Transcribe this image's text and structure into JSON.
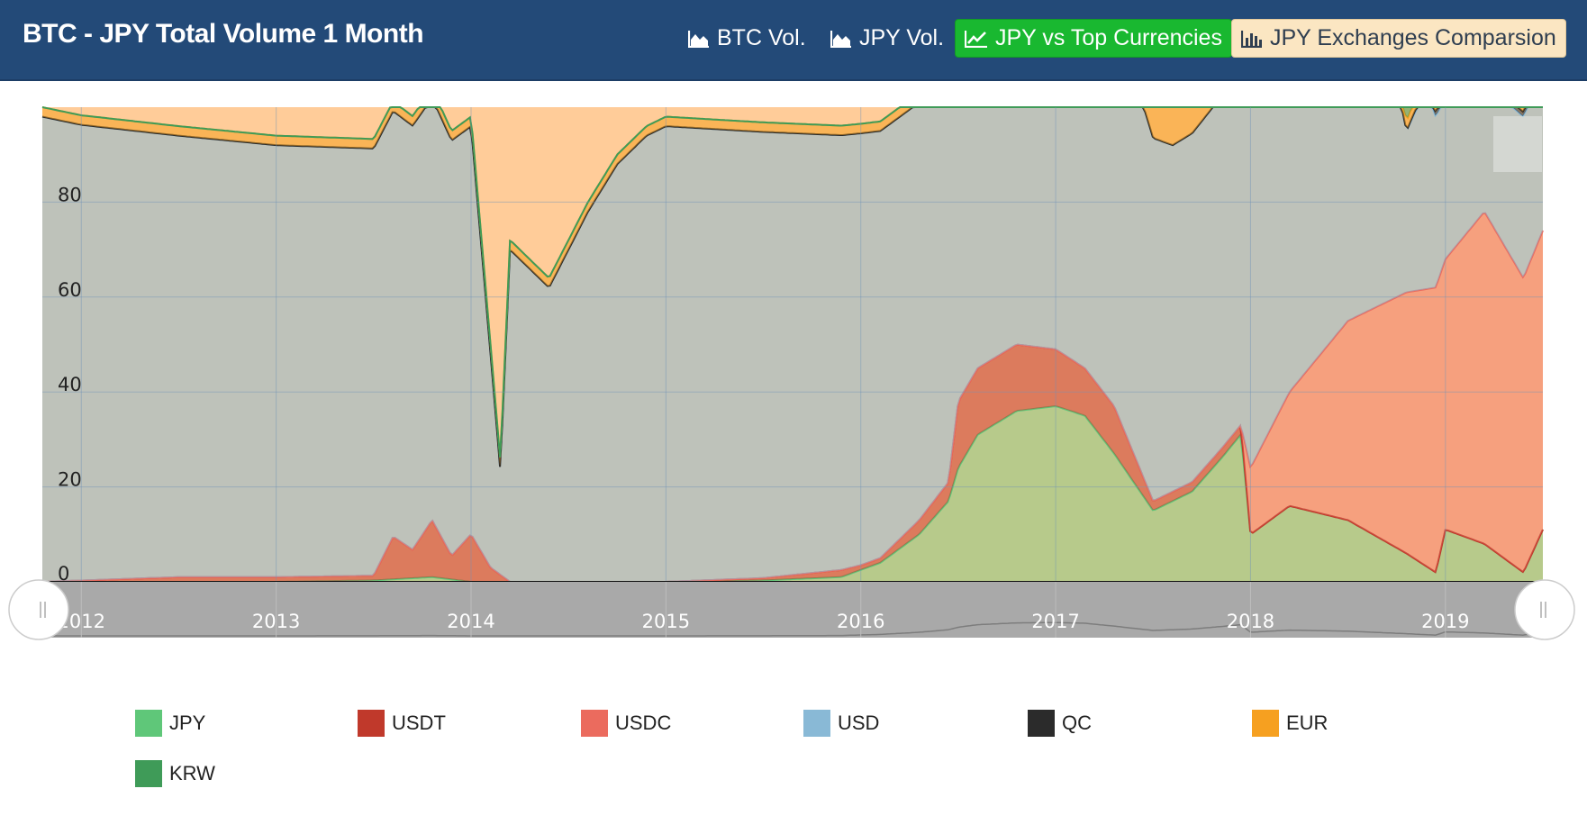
{
  "header": {
    "title": "BTC - JPY Total Volume 1 Month",
    "buttons": [
      {
        "label": "BTC Vol.",
        "icon": "area-chart-icon"
      },
      {
        "label": "JPY Vol.",
        "icon": "area-chart-icon"
      },
      {
        "label": "JPY vs Top Currencies",
        "icon": "line-chart-icon"
      },
      {
        "label": "JPY Exchanges Comparsion",
        "icon": "bar-chart-icon"
      }
    ]
  },
  "colors": {
    "header_bg": "#234a78",
    "active_button": "#19b830",
    "exchanges_button": "#fbe6c2"
  },
  "chart_data": {
    "type": "area",
    "stacking": "percent",
    "x_ticks": [
      "2012",
      "2013",
      "2014",
      "2015",
      "2016",
      "2017",
      "2018",
      "2019"
    ],
    "y_ticks": [
      "0",
      "20",
      "40",
      "60",
      "80"
    ],
    "ylim": [
      0,
      100
    ],
    "grid": true,
    "legend_position": "bottom",
    "navigator": true,
    "series": [
      {
        "name": "JPY",
        "color": "#5fc779",
        "x": [
          2011.8,
          2012.5,
          2013.0,
          2013.5,
          2013.8,
          2014.0,
          2014.5,
          2015.0,
          2015.5,
          2015.9,
          2016.1,
          2016.3,
          2016.45,
          2016.5,
          2016.6,
          2016.8,
          2017.0,
          2017.15,
          2017.3,
          2017.5,
          2017.7,
          2017.85,
          2017.95,
          2018.0,
          2018.2,
          2018.5,
          2018.8,
          2018.95,
          2019.0,
          2019.2,
          2019.4,
          2019.5
        ],
        "values": [
          0,
          0,
          0,
          0.3,
          1,
          0,
          0,
          0,
          0.3,
          1,
          4,
          10,
          17,
          24,
          31,
          36,
          37,
          35,
          27,
          15,
          19,
          26,
          31,
          10,
          16,
          13,
          6,
          2,
          11,
          8,
          2,
          11
        ]
      },
      {
        "name": "USDT",
        "color": "#c0392b",
        "x": [
          2011.8,
          2012.5,
          2013.0,
          2013.5,
          2013.6,
          2013.7,
          2013.8,
          2013.9,
          2014.0,
          2014.1,
          2014.2,
          2014.5,
          2015.0,
          2015.5,
          2015.9,
          2016.0,
          2016.1,
          2016.3,
          2016.45,
          2016.5,
          2016.6,
          2016.8,
          2017.0,
          2017.15,
          2017.3,
          2017.5,
          2017.7,
          2017.85,
          2017.95,
          2018.0,
          2018.2,
          2018.5,
          2018.8,
          2018.95,
          2019.0,
          2019.2,
          2019.4,
          2019.5
        ],
        "values": [
          0,
          1,
          1,
          1,
          9,
          6,
          12,
          5,
          10,
          3,
          0,
          0,
          0,
          0.5,
          1.5,
          1,
          1,
          3,
          4,
          14,
          14,
          14,
          12,
          10,
          10,
          2,
          2,
          2,
          2,
          0,
          0,
          0,
          0,
          0,
          0,
          0,
          0,
          0
        ]
      },
      {
        "name": "USDC",
        "color": "#eb6b5e",
        "x": [
          2011.8,
          2017.95,
          2018.0,
          2018.2,
          2018.5,
          2018.8,
          2018.95,
          2019.0,
          2019.2,
          2019.4,
          2019.5
        ],
        "values": [
          0,
          0,
          14,
          24,
          42,
          55,
          60,
          57,
          70,
          62,
          63
        ]
      },
      {
        "name": "USD",
        "color": "#89b9d6",
        "x": [
          2011.8,
          2012.0,
          2012.5,
          2013.0,
          2013.5,
          2013.8,
          2014.0,
          2014.1,
          2014.15,
          2014.2,
          2014.4,
          2014.6,
          2014.75,
          2014.9,
          2015.0,
          2015.5,
          2016.0,
          2016.3,
          2016.5,
          2016.7,
          2017.0,
          2017.2,
          2017.4,
          2017.6,
          2017.8,
          2018.0,
          2018.2,
          2018.4,
          2018.6,
          2018.8,
          2018.9,
          2018.95,
          2019.0,
          2019.2,
          2019.4,
          2019.5
        ],
        "values": [
          98,
          96,
          93,
          91,
          90,
          89,
          86,
          45,
          22,
          70,
          62,
          78,
          88,
          94,
          96,
          94,
          91,
          88,
          88,
          89,
          89,
          87,
          80,
          73,
          74,
          78,
          76,
          79,
          79,
          34,
          42,
          36,
          34,
          27,
          34,
          34
        ]
      },
      {
        "name": "QC",
        "color": "#2b2b2b",
        "x": [
          2011.8,
          2018.8,
          2018.9,
          2019.5
        ],
        "values": [
          0,
          0,
          1,
          1
        ]
      },
      {
        "name": "EUR",
        "color": "#f6a020",
        "x": [
          2011.8,
          2016.3,
          2016.4,
          2016.8,
          2017.0,
          2017.2,
          2017.4,
          2017.6,
          2017.8,
          2018.0,
          2018.2,
          2018.4,
          2018.6,
          2018.8,
          2018.9,
          2019.0,
          2019.5
        ],
        "values": [
          2,
          2,
          1,
          1,
          2,
          4,
          10,
          15,
          14,
          10,
          8,
          7,
          5,
          2,
          3,
          3,
          3
        ]
      },
      {
        "name": "KRW",
        "color": "#3f9b58",
        "x": [
          2011.8,
          2016.3,
          2016.4,
          2016.8,
          2017.0,
          2017.2,
          2017.4,
          2017.6,
          2017.8,
          2018.0,
          2018.2,
          2018.4,
          2018.6,
          2018.8,
          2018.9,
          2019.0,
          2019.5
        ],
        "values": [
          0,
          0,
          0.5,
          0.5,
          0.5,
          4,
          11,
          12,
          11,
          11,
          11,
          11,
          10,
          10,
          10,
          2,
          2
        ]
      }
    ]
  }
}
